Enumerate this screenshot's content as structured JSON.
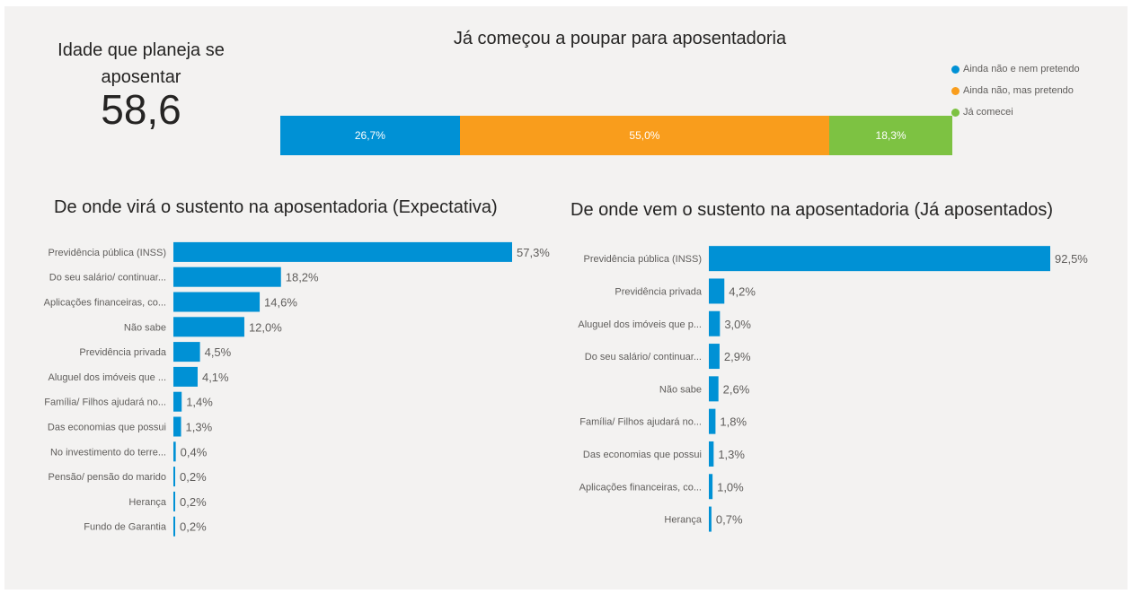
{
  "kpi": {
    "label": "Idade que planeja se aposentar",
    "value": "58,6"
  },
  "stacked": {
    "title": "Já começou a poupar para aposentadoria",
    "segments": [
      {
        "name": "Ainda não e nem pretendo",
        "value": 26.7,
        "label": "26,7%",
        "color": "#0091d5"
      },
      {
        "name": "Ainda não, mas pretendo",
        "value": 55.0,
        "label": "55,0%",
        "color": "#f99d1c"
      },
      {
        "name": "Já comecei",
        "value": 18.3,
        "label": "18,3%",
        "color": "#7dc242"
      }
    ]
  },
  "chart_data": [
    {
      "type": "bar",
      "orientation": "horizontal",
      "title": "Já começou a poupar para aposentadoria",
      "stacked": true,
      "categories": [
        ""
      ],
      "series": [
        {
          "name": "Ainda não e nem pretendo",
          "values": [
            26.7
          ]
        },
        {
          "name": "Ainda não, mas pretendo",
          "values": [
            55.0
          ]
        },
        {
          "name": "Já comecei",
          "values": [
            18.3
          ]
        }
      ],
      "legend": "right"
    },
    {
      "type": "bar",
      "orientation": "horizontal",
      "title": "De onde virá o sustento na aposentadoria (Expectativa)",
      "color": "#0091d5",
      "categories": [
        "Previdência pública (INSS)",
        "Do seu salário/ continuar...",
        "Aplicações financeiras, co...",
        "Não sabe",
        "Previdência privada",
        "Aluguel dos imóveis que ...",
        "Família/ Filhos ajudará no...",
        "Das economias que possui",
        "No investimento do terre...",
        "Pensão/ pensão do marido",
        "Herança",
        "Fundo de Garantia"
      ],
      "values": [
        57.3,
        18.2,
        14.6,
        12.0,
        4.5,
        4.1,
        1.4,
        1.3,
        0.4,
        0.2,
        0.2,
        0.2
      ],
      "value_labels": [
        "57,3%",
        "18,2%",
        "14,6%",
        "12,0%",
        "4,5%",
        "4,1%",
        "1,4%",
        "1,3%",
        "0,4%",
        "0,2%",
        "0,2%",
        "0,2%"
      ],
      "xlim": [
        0,
        57.3
      ]
    },
    {
      "type": "bar",
      "orientation": "horizontal",
      "title": "De onde vem o sustento na aposentadoria (Já aposentados)",
      "color": "#0091d5",
      "categories": [
        "Previdência pública (INSS)",
        "Previdência privada",
        "Aluguel dos imóveis que p...",
        "Do seu salário/ continuar...",
        "Não sabe",
        "Família/ Filhos ajudará no...",
        "Das economias que possui",
        "Aplicações financeiras, co...",
        "Herança"
      ],
      "values": [
        92.5,
        4.2,
        3.0,
        2.9,
        2.6,
        1.8,
        1.3,
        1.0,
        0.7
      ],
      "value_labels": [
        "92,5%",
        "4,2%",
        "3,0%",
        "2,9%",
        "2,6%",
        "1,8%",
        "1,3%",
        "1,0%",
        "0,7%"
      ],
      "xlim": [
        0,
        92.5
      ]
    }
  ]
}
